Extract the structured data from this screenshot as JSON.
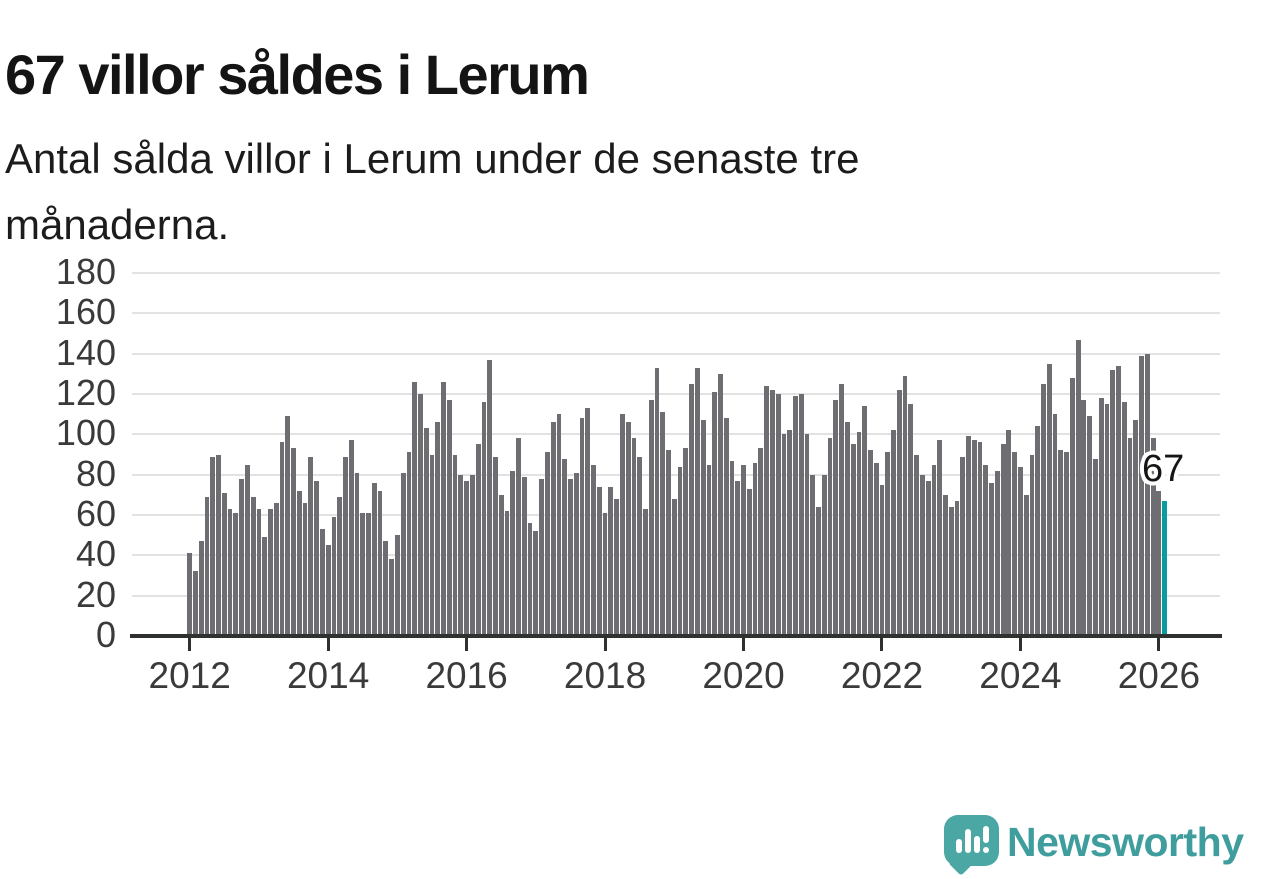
{
  "header": {
    "title": "67 villor såldes i Lerum",
    "subtitle": "Antal sålda villor i Lerum under de senaste tre månaderna.",
    "subtitle_lines": [
      "Antal sålda villor i Lerum under de senaste tre",
      "månaderna."
    ]
  },
  "annotation": {
    "label": "67"
  },
  "logo": {
    "text": "Newsworthy"
  },
  "colors": {
    "bar": "#6e6e72",
    "highlight_bar": "#0a9aa2",
    "gridline": "#e2e2e2",
    "axis": "#2f3030",
    "axis_text": "#3a3a3a",
    "title_text": "#141414",
    "logo_teal": "#4ba7a3",
    "wordmark_teal": "#3f9d9d"
  },
  "chart_data": {
    "type": "bar",
    "title": "67 villor såldes i Lerum",
    "subtitle": "Antal sålda villor i Lerum under de senaste tre månaderna.",
    "xlabel": "",
    "ylabel": "",
    "ylim": [
      0,
      180
    ],
    "y_ticks": [
      0,
      20,
      40,
      60,
      80,
      100,
      120,
      140,
      160,
      180
    ],
    "x_tick_labels": [
      "2012",
      "2014",
      "2016",
      "2018",
      "2020",
      "2022",
      "2024",
      "2026"
    ],
    "x_start": "2012-01",
    "x_frequency": "monthly",
    "grid": "horizontal",
    "legend": "none",
    "values": [
      41,
      32,
      47,
      69,
      89,
      90,
      71,
      63,
      61,
      78,
      85,
      69,
      63,
      49,
      63,
      66,
      96,
      109,
      93,
      72,
      66,
      89,
      77,
      53,
      45,
      59,
      69,
      89,
      97,
      81,
      61,
      61,
      76,
      72,
      47,
      38,
      50,
      81,
      91,
      126,
      120,
      103,
      90,
      106,
      126,
      117,
      90,
      80,
      77,
      80,
      95,
      116,
      137,
      89,
      70,
      62,
      82,
      98,
      79,
      56,
      52,
      78,
      91,
      106,
      110,
      88,
      78,
      81,
      108,
      113,
      85,
      74,
      61,
      74,
      68,
      110,
      106,
      98,
      89,
      63,
      117,
      133,
      111,
      92,
      68,
      84,
      93,
      125,
      133,
      107,
      85,
      121,
      130,
      108,
      87,
      77,
      85,
      73,
      86,
      93,
      124,
      122,
      120,
      100,
      102,
      119,
      120,
      100,
      80,
      64,
      80,
      98,
      117,
      125,
      106,
      95,
      101,
      114,
      92,
      86,
      75,
      91,
      102,
      122,
      129,
      115,
      90,
      80,
      77,
      85,
      97,
      70,
      64,
      67,
      89,
      99,
      97,
      96,
      85,
      76,
      82,
      95,
      102,
      91,
      84,
      70,
      90,
      104,
      125,
      135,
      110,
      92,
      91,
      128,
      147,
      117,
      109,
      88,
      118,
      115,
      132,
      134,
      116,
      98,
      107,
      139,
      140,
      98,
      72,
      67
    ],
    "highlight": {
      "index": 169,
      "value": 67,
      "label": "67"
    }
  }
}
